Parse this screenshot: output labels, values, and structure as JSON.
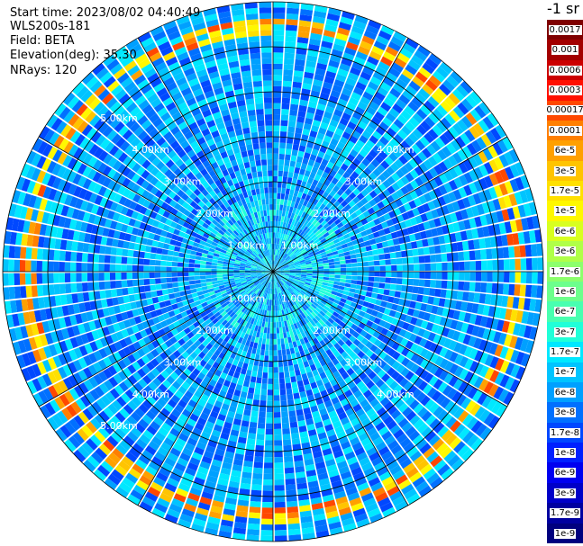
{
  "info": {
    "start_time": "Start time: 2023/08/02 04:40:49",
    "instrument": "WLS200s-181",
    "field": "Field: BETA",
    "elevation": "Elevation(deg): 35.30",
    "nrays": "NRays: 120"
  },
  "colorbar": {
    "title": "-1 sr",
    "labels": [
      "0.0017",
      "0.001",
      "0.0006",
      "0.0003",
      "0.00017",
      "0.0001",
      "6e-5",
      "3e-5",
      "1.7e-5",
      "1e-5",
      "6e-6",
      "3e-6",
      "1.7e-6",
      "1e-6",
      "6e-7",
      "3e-7",
      "1.7e-7",
      "1e-7",
      "6e-8",
      "3e-8",
      "1.7e-8",
      "1e-8",
      "6e-9",
      "3e-9",
      "1.7e-9",
      "1e-9"
    ],
    "colors": [
      "#7f0000",
      "#a30000",
      "#cc0000",
      "#ff1000",
      "#ff4800",
      "#ff7f00",
      "#ffa000",
      "#ffc400",
      "#ffe000",
      "#fff800",
      "#d8ff20",
      "#b0ff48",
      "#8cff6c",
      "#6cff8c",
      "#48ffb0",
      "#20ffd8",
      "#00e8ff",
      "#00c4ff",
      "#00a0ff",
      "#0070ff",
      "#0048ff",
      "#0020ff",
      "#0000f0",
      "#0000c8",
      "#0000a0",
      "#00007f"
    ]
  },
  "chart_data": {
    "type": "heatmap",
    "title": "",
    "nrays": 120,
    "max_range_km": 6,
    "range_ring_labels": [
      "1.00km",
      "2.00km",
      "3.00km",
      "4.00km",
      "5.00km"
    ],
    "range_rings_km": [
      1,
      2,
      3,
      4,
      5,
      6
    ],
    "spoke_angles_deg": [
      0,
      30,
      60,
      90,
      120,
      150
    ],
    "cmap_rule": "colorbar.colors ordered from highest (top) to lowest (bottom) value",
    "typical_value_band": "6e-8 to 1.7e-7",
    "high_value_ring_km": 5.4,
    "high_value_ring_peak": "0.00017",
    "near_range_value": "1e-8"
  }
}
